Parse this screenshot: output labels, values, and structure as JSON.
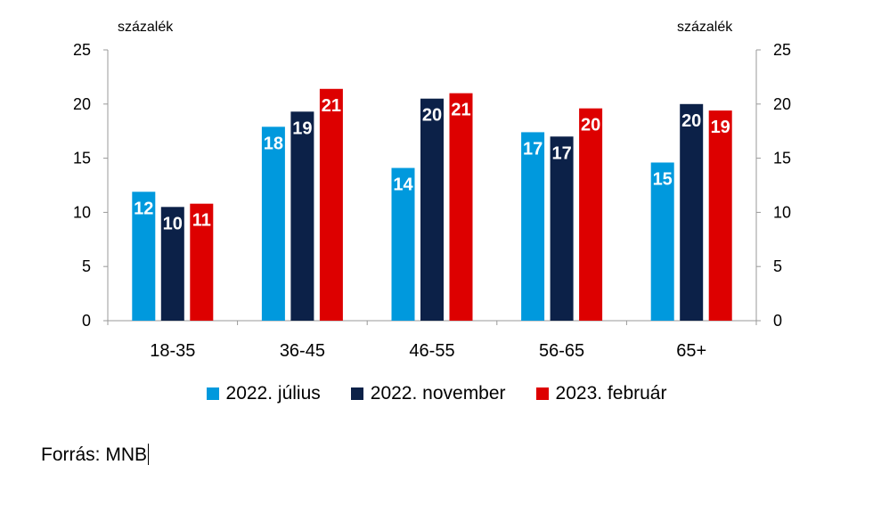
{
  "chart_data": {
    "type": "bar",
    "y_unit_left": "százalék",
    "y_unit_right": "százalék",
    "categories": [
      "18-35",
      "36-45",
      "46-55",
      "56-65",
      "65+"
    ],
    "series": [
      {
        "name": "2022. július",
        "color": "#0099dd",
        "values": [
          11.9,
          17.9,
          14.1,
          17.4,
          14.6
        ],
        "labels": [
          "12",
          "18",
          "14",
          "17",
          "15"
        ]
      },
      {
        "name": "2022. november",
        "color": "#0c2148",
        "values": [
          10.5,
          19.3,
          20.5,
          17.0,
          20.0
        ],
        "labels": [
          "10",
          "19",
          "20",
          "17",
          "20"
        ]
      },
      {
        "name": "2023. február",
        "color": "#dd0000",
        "values": [
          10.8,
          21.4,
          21.0,
          19.6,
          19.4
        ],
        "labels": [
          "11",
          "21",
          "21",
          "20",
          "19"
        ]
      }
    ],
    "ylim": [
      0,
      25
    ],
    "yticks": [
      "0",
      "5",
      "10",
      "15",
      "20",
      "25"
    ],
    "y2ticks": [
      "0",
      "5",
      "10",
      "15",
      "20",
      "25"
    ],
    "grid": false,
    "legend_position": "bottom"
  },
  "source_text": "Forrás: MNB"
}
